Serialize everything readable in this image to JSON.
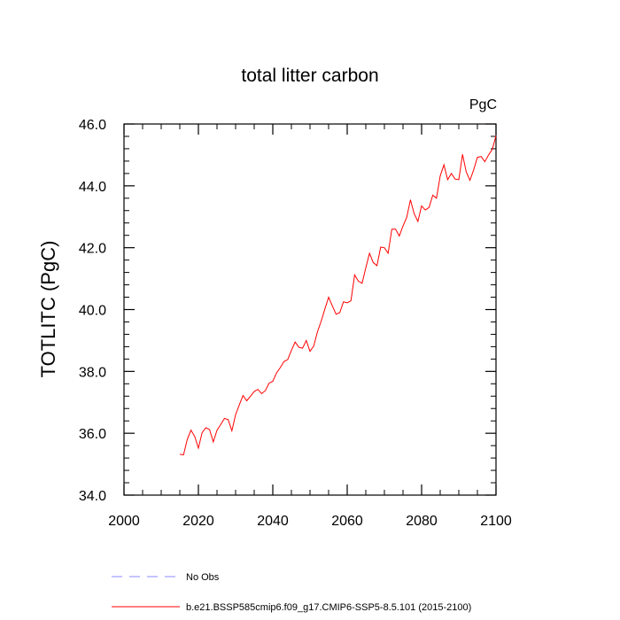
{
  "chart_data": {
    "type": "line",
    "title": "total litter carbon",
    "units_label": "PgC",
    "ylabel": "TOTLITC  (PgC)",
    "xlabel": "",
    "xlim": [
      2000,
      2100
    ],
    "ylim": [
      34.0,
      46.0
    ],
    "x_ticks": [
      2000,
      2020,
      2040,
      2060,
      2080,
      2100
    ],
    "x_tick_labels": [
      "2000",
      "2020",
      "2040",
      "2060",
      "2080",
      "2100"
    ],
    "y_ticks": [
      34.0,
      36.0,
      38.0,
      40.0,
      42.0,
      44.0,
      46.0
    ],
    "y_tick_labels": [
      "34.0",
      "36.0",
      "38.0",
      "40.0",
      "42.0",
      "44.0",
      "46.0"
    ],
    "grid": false,
    "legend_position": "bottom",
    "series": [
      {
        "name": "No Obs",
        "color": "#8a8aff",
        "dash": "dashed",
        "x": [],
        "y": []
      },
      {
        "name": "b.e21.BSSP585cmip6.f09_g17.CMIP6-SSP5-8.5.101 (2015-2100)",
        "color": "#ff0000",
        "dash": "solid",
        "x": [
          2015,
          2016,
          2017,
          2018,
          2019,
          2020,
          2021,
          2022,
          2023,
          2024,
          2025,
          2026,
          2027,
          2028,
          2029,
          2030,
          2031,
          2032,
          2033,
          2034,
          2035,
          2036,
          2037,
          2038,
          2039,
          2040,
          2041,
          2042,
          2043,
          2044,
          2045,
          2046,
          2047,
          2048,
          2049,
          2050,
          2051,
          2052,
          2053,
          2054,
          2055,
          2056,
          2057,
          2058,
          2059,
          2060,
          2061,
          2062,
          2063,
          2064,
          2065,
          2066,
          2067,
          2068,
          2069,
          2070,
          2071,
          2072,
          2073,
          2074,
          2075,
          2076,
          2077,
          2078,
          2079,
          2080,
          2081,
          2082,
          2083,
          2084,
          2085,
          2086,
          2087,
          2088,
          2089,
          2090,
          2091,
          2092,
          2093,
          2094,
          2095,
          2096,
          2097,
          2098,
          2099,
          2100
        ],
        "y": [
          35.32,
          35.3,
          35.8,
          36.1,
          35.9,
          35.52,
          36.02,
          36.18,
          36.12,
          35.72,
          36.1,
          36.28,
          36.48,
          36.44,
          36.08,
          36.6,
          36.92,
          37.22,
          37.05,
          37.2,
          37.35,
          37.42,
          37.28,
          37.38,
          37.62,
          37.68,
          37.95,
          38.12,
          38.32,
          38.38,
          38.68,
          38.95,
          38.78,
          38.75,
          39.0,
          38.65,
          38.82,
          39.28,
          39.62,
          40.02,
          40.4,
          40.12,
          39.85,
          39.9,
          40.25,
          40.22,
          40.28,
          41.12,
          40.92,
          40.85,
          41.35,
          41.82,
          41.52,
          41.42,
          42.02,
          42.0,
          41.82,
          42.6,
          42.6,
          42.38,
          42.7,
          42.98,
          43.55,
          43.1,
          42.85,
          43.35,
          43.22,
          43.3,
          43.7,
          43.6,
          44.32,
          44.68,
          44.2,
          44.4,
          44.22,
          44.2,
          45.02,
          44.45,
          44.18,
          44.52,
          44.92,
          44.95,
          44.78,
          45.0,
          45.18,
          45.62
        ]
      }
    ]
  }
}
